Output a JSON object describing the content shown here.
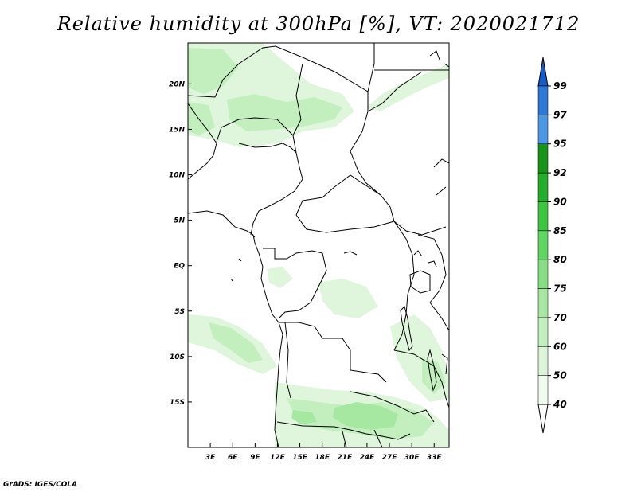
{
  "title": "Relative humidity at 300hPa [%], VT: 2020021712",
  "footer": "GrADS: IGES/COLA",
  "map": {
    "lon_range": [
      0,
      35
    ],
    "lat_range": [
      -20,
      24.5
    ],
    "x_ticks": [
      "3E",
      "6E",
      "9E",
      "12E",
      "15E",
      "18E",
      "21E",
      "24E",
      "27E",
      "30E",
      "33E"
    ],
    "x_tick_values": [
      3,
      6,
      9,
      12,
      15,
      18,
      21,
      24,
      27,
      30,
      33
    ],
    "y_ticks": [
      "20N",
      "15N",
      "10N",
      "5N",
      "EQ",
      "5S",
      "10S",
      "15S"
    ],
    "y_tick_values": [
      20,
      15,
      10,
      5,
      0,
      -5,
      -10,
      -15
    ]
  },
  "colorbar": {
    "levels": [
      "40",
      "50",
      "60",
      "70",
      "75",
      "80",
      "85",
      "90",
      "92",
      "95",
      "97",
      "99"
    ],
    "colors": [
      "#f0fbef",
      "#dcf5d9",
      "#c3efbf",
      "#a6e8a2",
      "#86e083",
      "#5ed860",
      "#3cc73e",
      "#22ae2a",
      "#159417",
      "#4a98e6",
      "#2c78d9",
      "#175cc6"
    ],
    "lower_arrow_color": "#ffffff",
    "upper_arrow_color": "#175cc6"
  },
  "colors": {
    "light_green": "#dff6dc",
    "mid_green": "#c3efbf",
    "green": "#a6e8a2"
  }
}
